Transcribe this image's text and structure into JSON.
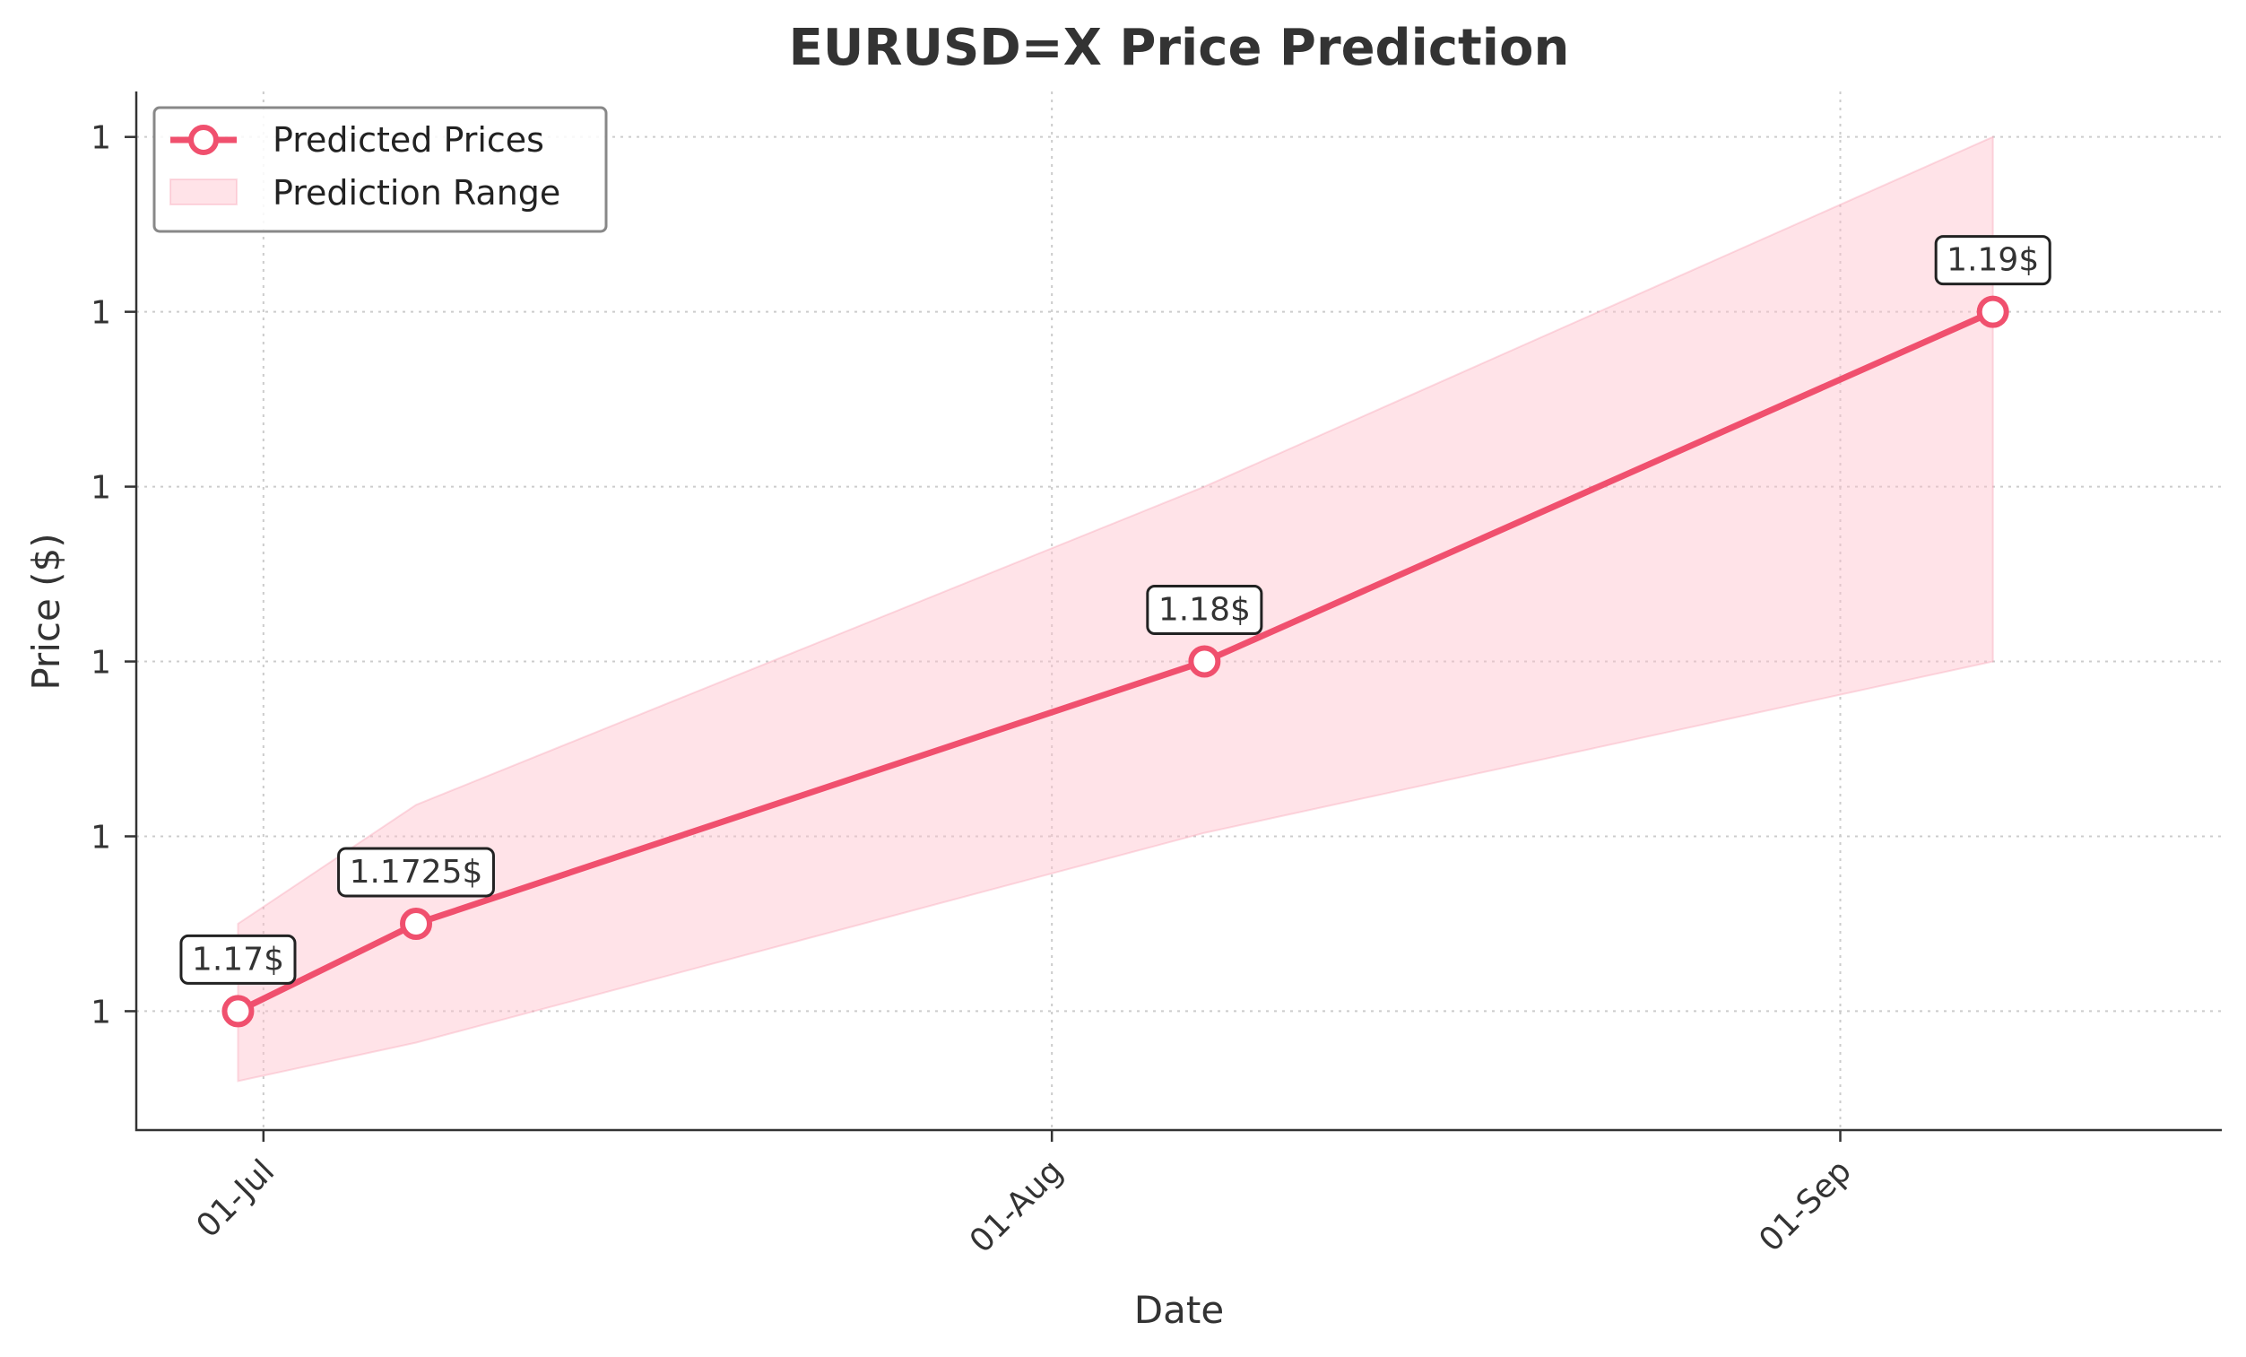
{
  "chart_data": {
    "type": "line",
    "title": "EURUSD=X Price Prediction",
    "xlabel": "Date",
    "ylabel": "Price ($)",
    "x_ticks": [
      {
        "date": "2025-07-01",
        "label": "01-Jul"
      },
      {
        "date": "2025-08-01",
        "label": "01-Aug"
      },
      {
        "date": "2025-09-01",
        "label": "01-Sep"
      }
    ],
    "y_ticks": [
      {
        "value": 1.17,
        "label": "1"
      },
      {
        "value": 1.175,
        "label": "1"
      },
      {
        "value": 1.18,
        "label": "1"
      },
      {
        "value": 1.185,
        "label": "1"
      },
      {
        "value": 1.19,
        "label": "1"
      },
      {
        "value": 1.195,
        "label": "1"
      }
    ],
    "xlim": [
      "2025-06-26",
      "2025-09-16"
    ],
    "ylim": [
      1.1666,
      1.1963
    ],
    "grid": true,
    "legend_position": "top-left",
    "series": [
      {
        "name": "Predicted Prices",
        "type": "line",
        "color": "#f0506e",
        "points": [
          {
            "x": "2025-06-30",
            "y": 1.17,
            "label": "1.17$"
          },
          {
            "x": "2025-07-07",
            "y": 1.1725,
            "label": "1.1725$"
          },
          {
            "x": "2025-08-07",
            "y": 1.18,
            "label": "1.18$"
          },
          {
            "x": "2025-09-07",
            "y": 1.19,
            "label": "1.19$"
          }
        ]
      },
      {
        "name": "Prediction Range",
        "type": "area",
        "color": "#ffc0cb",
        "x": [
          "2025-06-30",
          "2025-07-07",
          "2025-08-07",
          "2025-09-07"
        ],
        "lower": [
          1.168,
          1.1691,
          1.1751,
          1.18
        ],
        "upper": [
          1.1725,
          1.1759,
          1.185,
          1.195
        ]
      }
    ]
  }
}
